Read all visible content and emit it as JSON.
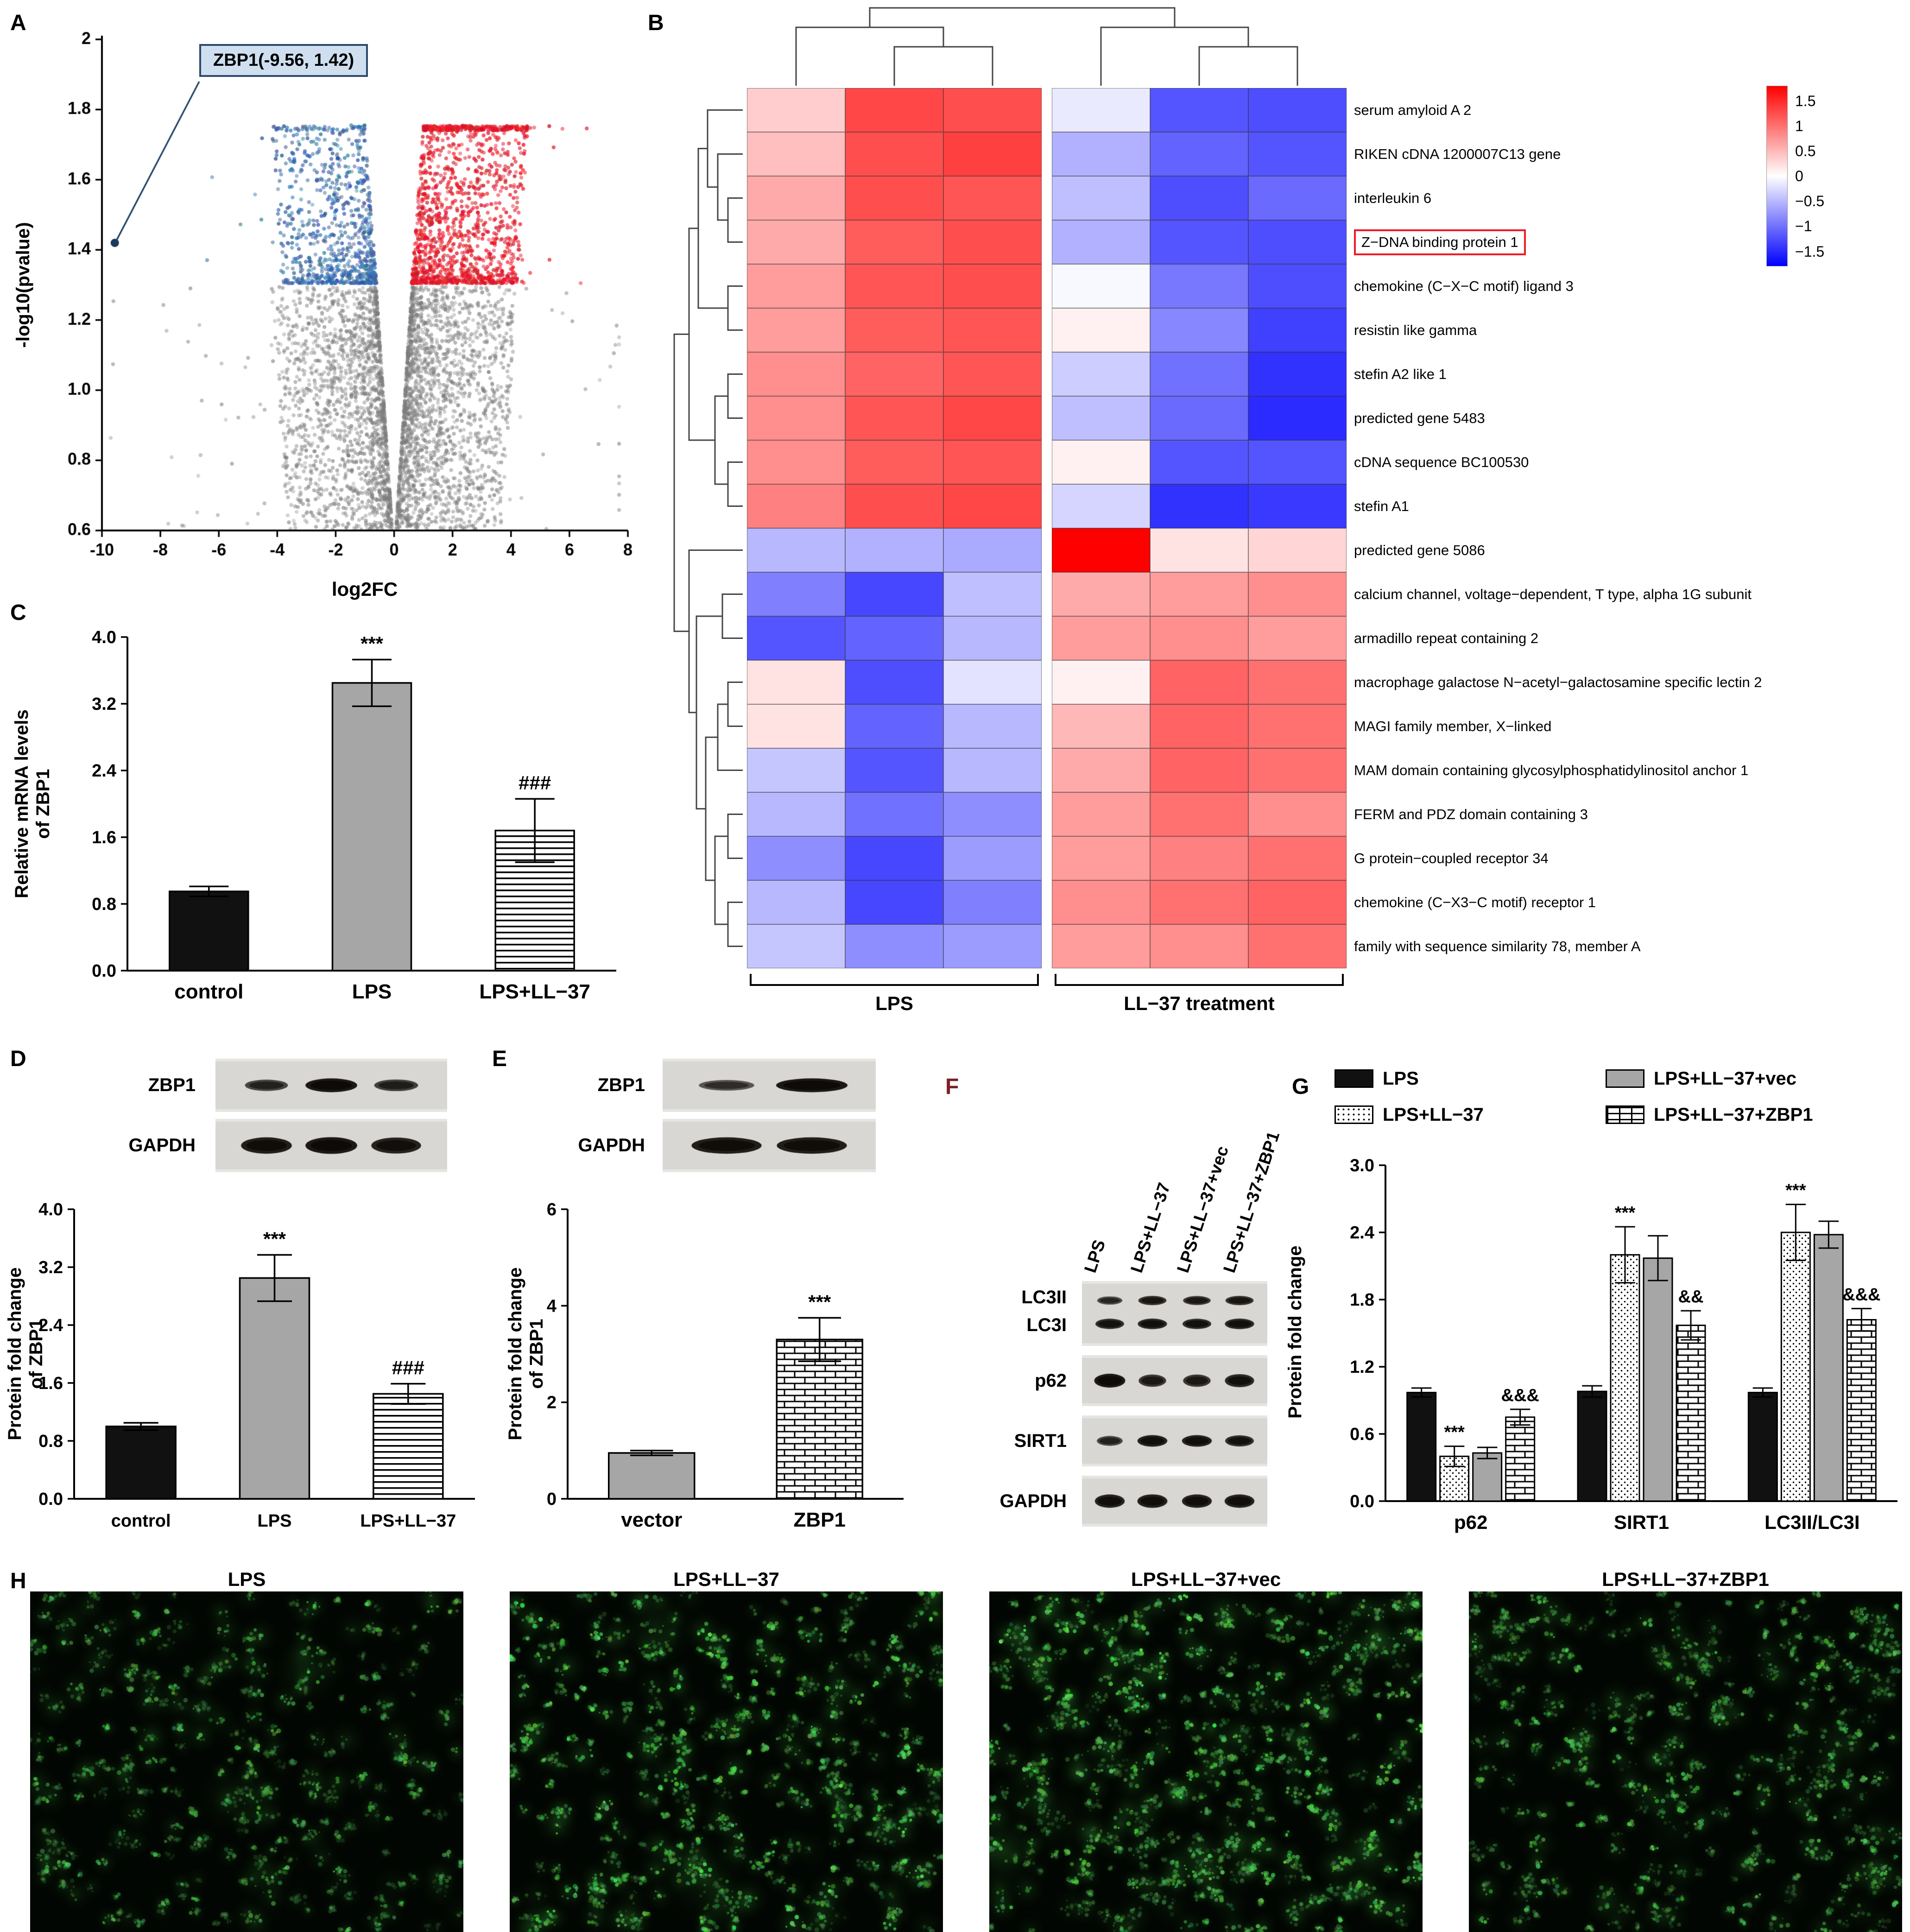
{
  "panels": {
    "A": {
      "letter": "A"
    },
    "B": {
      "letter": "B"
    },
    "C": {
      "letter": "C"
    },
    "D": {
      "letter": "D",
      "blot_rows": [
        {
          "label": "ZBP1",
          "intensities": [
            0.55,
            1.0,
            0.6
          ]
        },
        {
          "label": "GAPDH",
          "intensities": [
            0.95,
            1.0,
            0.9
          ]
        }
      ]
    },
    "E": {
      "letter": "E",
      "blot_rows": [
        {
          "label": "ZBP1",
          "intensities": [
            0.4,
            1.0
          ]
        },
        {
          "label": "GAPDH",
          "intensities": [
            0.95,
            0.95
          ]
        }
      ]
    },
    "F": {
      "letter": "F",
      "lane_labels": [
        "LPS",
        "LPS+LL−37",
        "LPS+LL−37+vec",
        "LPS+LL−37+ZBP1"
      ],
      "blots": [
        {
          "labels": [
            "LC3II",
            "LC3I"
          ],
          "bands": [
            [
              0.5,
              0.75,
              0.7,
              0.75
            ],
            [
              0.8,
              0.85,
              0.8,
              0.85
            ]
          ]
        },
        {
          "labels": [
            "p62"
          ],
          "bands": [
            [
              1.0,
              0.7,
              0.7,
              0.85
            ]
          ]
        },
        {
          "labels": [
            "SIRT1"
          ],
          "bands": [
            [
              0.55,
              0.9,
              0.9,
              0.8
            ]
          ]
        },
        {
          "labels": [
            "GAPDH"
          ],
          "bands": [
            [
              0.9,
              0.92,
              0.9,
              0.9
            ]
          ]
        }
      ]
    },
    "G": {
      "letter": "G"
    },
    "H": {
      "letter": "H",
      "image_labels": [
        "LPS",
        "LPS+LL−37",
        "LPS+LL−37+vec",
        "LPS+LL−37+ZBP1"
      ]
    }
  },
  "chart_data": [
    {
      "id": "volcano_plot",
      "panel": "A",
      "type": "scatter",
      "title": "",
      "xlabel": "log2FC",
      "ylabel": "-log10(pvalue)",
      "xlim": [
        -10,
        8
      ],
      "ylim": [
        0.6,
        2.0
      ],
      "xticks": [
        -10,
        -8,
        -6,
        -4,
        -2,
        0,
        2,
        4,
        6,
        8
      ],
      "yticks": [
        0.6,
        0.8,
        1.0,
        1.2,
        1.4,
        1.6,
        1.8,
        2.0
      ],
      "ytick_labels": [
        "0.6",
        "0.8",
        "1.0",
        "1.2",
        "1.4",
        "1.6",
        "1.8",
        "2"
      ],
      "significance_threshold_pvalue": 1.3,
      "annotation": {
        "label": "ZBP1(-9.56, 1.42)",
        "x": -9.56,
        "y": 1.42
      },
      "colors": {
        "upregulated": "#d7191c",
        "downregulated": "#2b5c8a",
        "nonsignificant": "#8c8c8c",
        "highlight": "#1a3a5c"
      },
      "approx_point_counts": {
        "nonsignificant": 3800,
        "downregulated": 850,
        "upregulated": 1400
      }
    },
    {
      "id": "deg_heatmap",
      "panel": "B",
      "type": "heatmap",
      "rows": [
        "serum amyloid A 2",
        "RIKEN cDNA 1200007C13 gene",
        "interleukin 6",
        "Z−DNA binding protein 1",
        "chemokine (C−X−C motif) ligand 3",
        "resistin like gamma",
        "stefin A2 like 1",
        "predicted gene 5483",
        "cDNA sequence BC100530",
        "stefin A1",
        "predicted gene 5086",
        "calcium channel, voltage−dependent, T type, alpha 1G subunit",
        "armadillo repeat containing 2",
        "macrophage galactose N−acetyl−galactosamine specific lectin 2",
        "MAGI family member, X−linked",
        "MAM domain containing glycosylphosphatidylinositol anchor 1",
        "FERM and PDZ domain containing 3",
        "G protein−coupled receptor 34",
        "chemokine (C−X3−C motif) receptor 1",
        "family with sequence similarity 78, member A"
      ],
      "highlighted_row": "Z−DNA binding protein 1",
      "col_groups": [
        {
          "label": "LPS",
          "cols": 3
        },
        {
          "label": "LL−37 treatment",
          "cols": 3
        }
      ],
      "values": [
        [
          0.35,
          1.3,
          1.25,
          -0.15,
          -1.2,
          -1.25
        ],
        [
          0.45,
          1.25,
          1.35,
          -0.55,
          -1.1,
          -1.2
        ],
        [
          0.6,
          1.25,
          1.2,
          -0.45,
          -1.25,
          -1.05
        ],
        [
          0.6,
          1.15,
          1.25,
          -0.55,
          -1.2,
          -1.25
        ],
        [
          0.7,
          1.2,
          1.25,
          -0.05,
          -0.95,
          -1.25
        ],
        [
          0.7,
          1.15,
          1.2,
          0.1,
          -0.85,
          -1.35
        ],
        [
          0.8,
          1.1,
          1.2,
          -0.35,
          -1.0,
          -1.45
        ],
        [
          0.8,
          1.2,
          1.3,
          -0.45,
          -1.05,
          -1.5
        ],
        [
          0.8,
          1.15,
          1.2,
          0.1,
          -1.2,
          -1.2
        ],
        [
          0.9,
          1.25,
          1.3,
          -0.3,
          -1.45,
          -1.4
        ],
        [
          -0.5,
          -0.55,
          -0.6,
          1.8,
          0.2,
          0.3
        ],
        [
          -0.9,
          -1.3,
          -0.45,
          0.6,
          0.7,
          0.8
        ],
        [
          -1.2,
          -1.1,
          -0.5,
          0.7,
          0.8,
          0.7
        ],
        [
          0.2,
          -1.25,
          -0.2,
          0.1,
          1.1,
          1.0
        ],
        [
          0.2,
          -1.1,
          -0.5,
          0.5,
          1.1,
          1.0
        ],
        [
          -0.4,
          -1.2,
          -0.5,
          0.6,
          1.1,
          1.0
        ],
        [
          -0.5,
          -1.0,
          -0.8,
          0.7,
          1.0,
          0.8
        ],
        [
          -0.8,
          -1.3,
          -0.7,
          0.7,
          0.9,
          1.0
        ],
        [
          -0.5,
          -1.3,
          -0.9,
          0.8,
          1.0,
          1.1
        ],
        [
          -0.4,
          -0.8,
          -0.7,
          0.7,
          0.8,
          1.0
        ]
      ],
      "colorbar": {
        "labels": [
          "1.5",
          "1",
          "0.5",
          "0",
          "−0.5",
          "−1",
          "−1.5"
        ],
        "values": [
          1.5,
          1,
          0.5,
          0,
          -0.5,
          -1,
          -1.5
        ],
        "vmin": -1.8,
        "vmax": 1.8
      }
    },
    {
      "id": "zbp1_mrna",
      "panel": "C",
      "type": "bar",
      "ylabel": "Relative mRNA levels\nof ZBP1",
      "categories": [
        "control",
        "LPS",
        "LPS+LL−37"
      ],
      "values": [
        0.95,
        3.45,
        1.68
      ],
      "errors": [
        0.06,
        0.28,
        0.38
      ],
      "ylim": [
        0,
        4.0
      ],
      "yticks": [
        0.0,
        0.8,
        1.6,
        2.4,
        3.2,
        4.0
      ],
      "ytick_labels": [
        "0.0",
        "0.8",
        "1.6",
        "2.4",
        "3.2",
        "4.0"
      ],
      "significance": [
        "",
        "***",
        "###"
      ],
      "styles": [
        "black",
        "grey",
        "hstripe"
      ]
    },
    {
      "id": "zbp1_protein",
      "panel": "D",
      "type": "bar",
      "ylabel": "Protein fold change\nof ZBP1",
      "categories": [
        "control",
        "LPS",
        "LPS+LL−37"
      ],
      "values": [
        1.0,
        3.05,
        1.45
      ],
      "errors": [
        0.05,
        0.32,
        0.14
      ],
      "ylim": [
        0,
        4.0
      ],
      "yticks": [
        0.0,
        0.8,
        1.6,
        2.4,
        3.2,
        4.0
      ],
      "ytick_labels": [
        "0.0",
        "0.8",
        "1.6",
        "2.4",
        "3.2",
        "4.0"
      ],
      "significance": [
        "",
        "***",
        "###"
      ],
      "styles": [
        "black",
        "grey",
        "hstripe"
      ]
    },
    {
      "id": "zbp1_overexpression",
      "panel": "E",
      "type": "bar",
      "ylabel": "Protein fold change\nof ZBP1",
      "categories": [
        "vector",
        "ZBP1"
      ],
      "values": [
        0.95,
        3.3
      ],
      "errors": [
        0.05,
        0.45
      ],
      "ylim": [
        0,
        6
      ],
      "yticks": [
        0,
        2,
        4,
        6
      ],
      "ytick_labels": [
        "0",
        "2",
        "4",
        "6"
      ],
      "significance": [
        "",
        "***"
      ],
      "styles": [
        "grey",
        "brick"
      ]
    },
    {
      "id": "autophagy_proteins",
      "panel": "G",
      "type": "grouped-bar",
      "ylabel": "Protein fold change",
      "categories": [
        "p62",
        "SIRT1",
        "LC3II/LC3I"
      ],
      "series": [
        {
          "name": "LPS",
          "style": "black",
          "values": [
            0.97,
            0.98,
            0.97
          ],
          "errors": [
            0.04,
            0.05,
            0.04
          ]
        },
        {
          "name": "LPS+LL−37",
          "style": "stipple",
          "values": [
            0.4,
            2.2,
            2.4
          ],
          "errors": [
            0.09,
            0.25,
            0.25
          ]
        },
        {
          "name": "LPS+LL−37+vec",
          "style": "grey",
          "values": [
            0.43,
            2.17,
            2.38
          ],
          "errors": [
            0.05,
            0.2,
            0.12
          ]
        },
        {
          "name": "LPS+LL−37+ZBP1",
          "style": "brick",
          "values": [
            0.75,
            1.57,
            1.62
          ],
          "errors": [
            0.07,
            0.13,
            0.1
          ]
        }
      ],
      "ylim": [
        0,
        3.0
      ],
      "yticks": [
        0.0,
        0.6,
        1.2,
        1.8,
        2.4,
        3.0
      ],
      "ytick_labels": [
        "0.0",
        "0.6",
        "1.2",
        "1.8",
        "2.4",
        "3.0"
      ],
      "significance": [
        {
          "group": 0,
          "series": 1,
          "label": "***"
        },
        {
          "group": 0,
          "series": 3,
          "label": "&&&"
        },
        {
          "group": 1,
          "series": 1,
          "label": "***"
        },
        {
          "group": 1,
          "series": 3,
          "label": "&&"
        },
        {
          "group": 2,
          "series": 1,
          "label": "***"
        },
        {
          "group": 2,
          "series": 3,
          "label": "&&&"
        }
      ]
    }
  ]
}
